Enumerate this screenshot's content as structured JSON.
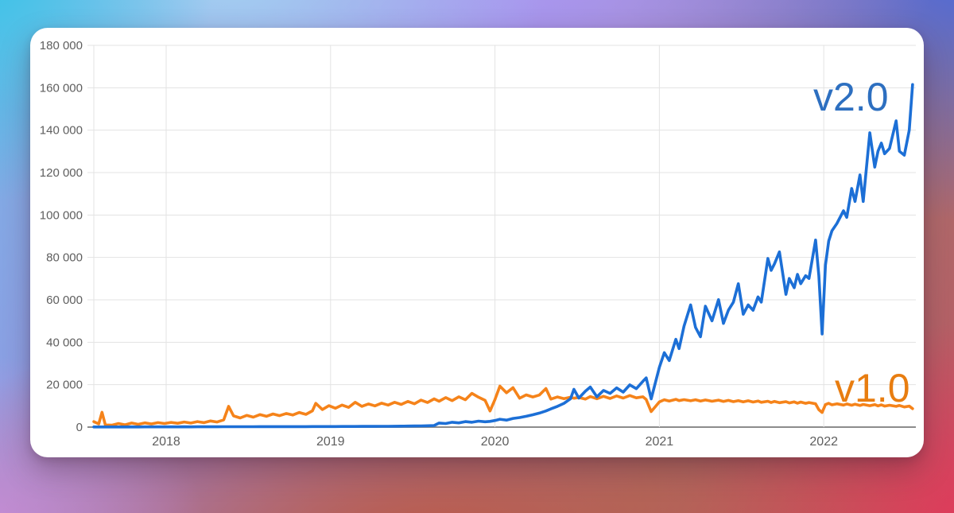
{
  "palette": {
    "card_background": "#ffffff",
    "grid_line": "#e3e3e3",
    "baseline": "#8c8c8c",
    "tick_text": "#5e5e5e",
    "background_gradient": [
      "#34c4e7",
      "#a8d8f3",
      "#ab98f0",
      "#486ae0",
      "#ce8cd8",
      "#bc5844",
      "#e5365c"
    ]
  },
  "chart_data": {
    "type": "line",
    "title": "",
    "xlabel": "",
    "ylabel": "",
    "x_domain": [
      2017.56,
      2022.56
    ],
    "ylim": [
      0,
      180000
    ],
    "grid": true,
    "legend_position": "inline-end-labels",
    "x_ticks": [
      2018,
      2019,
      2020,
      2021,
      2022
    ],
    "y_ticks": [
      0,
      20000,
      40000,
      60000,
      80000,
      100000,
      120000,
      140000,
      160000,
      180000
    ],
    "y_tick_labels": [
      "0",
      "20 000",
      "40 000",
      "60 000",
      "80 000",
      "100 000",
      "120 000",
      "140 000",
      "160 000",
      "180 000"
    ],
    "x": [
      2017.56,
      2017.59,
      2017.61,
      2017.63,
      2017.67,
      2017.71,
      2017.75,
      2017.79,
      2017.83,
      2017.87,
      2017.91,
      2017.95,
      2017.99,
      2018.03,
      2018.07,
      2018.11,
      2018.15,
      2018.19,
      2018.23,
      2018.27,
      2018.31,
      2018.35,
      2018.38,
      2018.41,
      2018.45,
      2018.49,
      2018.53,
      2018.57,
      2018.61,
      2018.65,
      2018.69,
      2018.73,
      2018.77,
      2018.81,
      2018.85,
      2018.89,
      2018.91,
      2018.95,
      2018.99,
      2019.03,
      2019.07,
      2019.11,
      2019.15,
      2019.19,
      2019.23,
      2019.27,
      2019.31,
      2019.35,
      2019.39,
      2019.43,
      2019.47,
      2019.51,
      2019.55,
      2019.59,
      2019.63,
      2019.66,
      2019.7,
      2019.74,
      2019.78,
      2019.82,
      2019.86,
      2019.9,
      2019.94,
      2019.97,
      2020.0,
      2020.03,
      2020.07,
      2020.11,
      2020.15,
      2020.19,
      2020.23,
      2020.27,
      2020.31,
      2020.34,
      2020.38,
      2020.42,
      2020.46,
      2020.48,
      2020.51,
      2020.55,
      2020.58,
      2020.62,
      2020.66,
      2020.7,
      2020.74,
      2020.78,
      2020.82,
      2020.86,
      2020.9,
      2020.92,
      2020.95,
      2021.0,
      2021.03,
      2021.06,
      2021.1,
      2021.12,
      2021.15,
      2021.19,
      2021.22,
      2021.25,
      2021.28,
      2021.32,
      2021.36,
      2021.39,
      2021.42,
      2021.45,
      2021.48,
      2021.51,
      2021.54,
      2021.57,
      2021.6,
      2021.62,
      2021.66,
      2021.68,
      2021.7,
      2021.73,
      2021.77,
      2021.79,
      2021.82,
      2021.84,
      2021.86,
      2021.89,
      2021.91,
      2021.95,
      2021.97,
      2021.99,
      2022.01,
      2022.03,
      2022.05,
      2022.08,
      2022.12,
      2022.14,
      2022.17,
      2022.19,
      2022.22,
      2022.24,
      2022.28,
      2022.31,
      2022.33,
      2022.35,
      2022.37,
      2022.4,
      2022.44,
      2022.46,
      2022.49,
      2022.52,
      2022.54
    ],
    "series": [
      {
        "name": "v1.0",
        "color": "#f5831a",
        "label_color": "#e87d10",
        "values": [
          2600,
          1500,
          7000,
          1000,
          900,
          1700,
          1100,
          1900,
          1300,
          2000,
          1500,
          2100,
          1700,
          2200,
          1800,
          2400,
          1900,
          2600,
          2100,
          2900,
          2400,
          3400,
          9800,
          5300,
          4300,
          5500,
          4700,
          5900,
          5100,
          6200,
          5400,
          6400,
          5700,
          6900,
          6000,
          7700,
          11200,
          8300,
          10100,
          8900,
          10400,
          9300,
          11700,
          9800,
          10900,
          10000,
          11300,
          10400,
          11700,
          10700,
          12100,
          11000,
          12700,
          11600,
          13300,
          12200,
          13900,
          12500,
          14300,
          12900,
          15900,
          14100,
          12600,
          7600,
          13000,
          19300,
          16200,
          18600,
          13600,
          15200,
          14200,
          15100,
          18200,
          13200,
          14200,
          13400,
          14100,
          13600,
          14000,
          13200,
          14400,
          13400,
          14500,
          13500,
          14700,
          13700,
          14900,
          13800,
          14300,
          13000,
          7300,
          11900,
          12900,
          12300,
          13100,
          12500,
          12950,
          12400,
          12900,
          12300,
          12800,
          12200,
          12700,
          12100,
          12600,
          12000,
          12500,
          11900,
          12400,
          11800,
          12300,
          11700,
          12200,
          11600,
          12100,
          11500,
          12000,
          11400,
          11900,
          11300,
          11800,
          11200,
          11600,
          11000,
          8200,
          6900,
          10600,
          11200,
          10500,
          11000,
          10400,
          10900,
          10300,
          10800,
          10200,
          10700,
          10100,
          10600,
          10000,
          10500,
          9900,
          10300,
          9800,
          10200,
          9500,
          9900,
          8700
        ]
      },
      {
        "name": "v2.0",
        "color": "#1c6fd6",
        "label_color": "#2d6fc0",
        "values": [
          60,
          70,
          80,
          70,
          80,
          90,
          80,
          100,
          90,
          110,
          100,
          120,
          110,
          130,
          120,
          140,
          130,
          150,
          140,
          160,
          150,
          170,
          180,
          180,
          190,
          200,
          200,
          210,
          210,
          220,
          220,
          230,
          230,
          240,
          240,
          250,
          250,
          260,
          270,
          280,
          290,
          300,
          310,
          320,
          330,
          340,
          360,
          380,
          410,
          440,
          480,
          530,
          580,
          650,
          750,
          1900,
          1700,
          2300,
          2000,
          2600,
          2300,
          2800,
          2500,
          2700,
          3100,
          3700,
          3300,
          4100,
          4500,
          5100,
          5800,
          6600,
          7600,
          8600,
          9800,
          11200,
          13400,
          17800,
          13700,
          16900,
          18900,
          14300,
          17300,
          15900,
          18500,
          16500,
          19900,
          18100,
          21600,
          23200,
          13300,
          28200,
          35100,
          31400,
          41400,
          37000,
          47600,
          57600,
          47000,
          42600,
          57000,
          50100,
          60100,
          48900,
          55100,
          58900,
          67600,
          53200,
          57600,
          55100,
          61400,
          58900,
          79500,
          73900,
          77000,
          82600,
          62600,
          70100,
          65700,
          72000,
          67600,
          71400,
          70100,
          88200,
          71400,
          43900,
          76400,
          87700,
          92600,
          96000,
          102000,
          98900,
          112500,
          106400,
          118900,
          106400,
          138800,
          122600,
          130100,
          133900,
          128900,
          131400,
          144400,
          130100,
          128200,
          140000,
          161500
        ]
      }
    ]
  }
}
